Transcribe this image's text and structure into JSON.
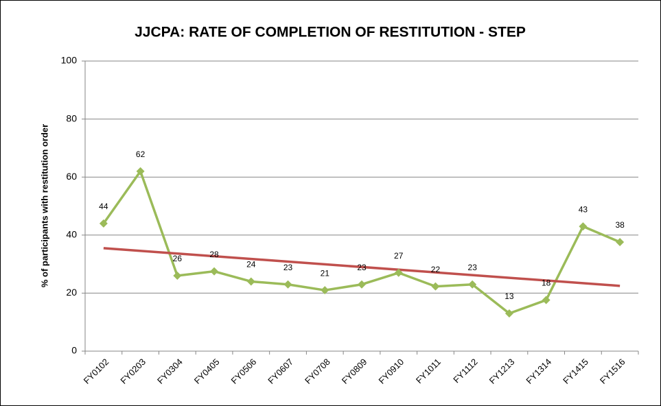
{
  "chart_data": {
    "type": "line",
    "title": "JJCPA: RATE OF COMPLETION OF RESTITUTION - STEP",
    "y_label": "% of participants with restitution order",
    "categories": [
      "FY0102",
      "FY0203",
      "FY0304",
      "FY0405",
      "FY0506",
      "FY0607",
      "FY0708",
      "FY0809",
      "FY0910",
      "FY1011",
      "FY1112",
      "FY1213",
      "FY1314",
      "FY1415",
      "FY1516"
    ],
    "values": [
      44,
      62,
      26,
      27.5,
      24,
      23,
      21,
      23,
      27,
      22.3,
      23,
      13,
      17.6,
      43,
      37.6
    ],
    "value_labels": [
      "44",
      "62",
      "26",
      "28",
      "24",
      "23",
      "21",
      "23",
      "27",
      "22",
      "23",
      "13",
      "18",
      "43",
      "38"
    ],
    "color": "#9bbb59",
    "trendline": {
      "start": 35.5,
      "end": 22.5,
      "color": "#c0504d"
    },
    "ylim": [
      0,
      100
    ],
    "yticks": [
      0,
      20,
      40,
      60,
      80,
      100
    ],
    "grid": true
  }
}
